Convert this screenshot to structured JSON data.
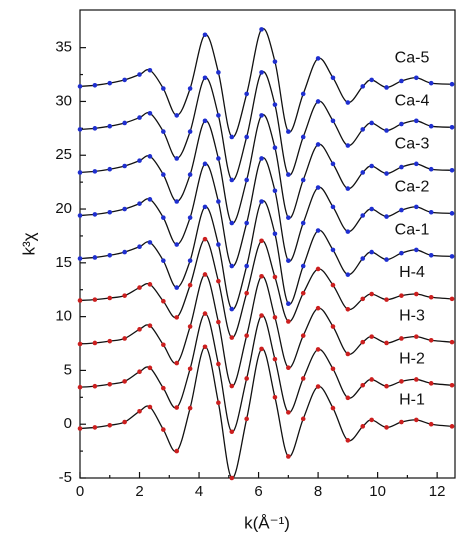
{
  "chart_data": {
    "type": "line",
    "x_label": "k(Å⁻¹)",
    "y_label": "k³χ",
    "x": [
      0,
      0.5,
      1,
      1.5,
      2,
      2.35,
      2.8,
      3.25,
      3.7,
      4.2,
      4.65,
      5.1,
      5.6,
      6.1,
      6.55,
      7.0,
      7.5,
      8.0,
      8.5,
      9.0,
      9.5,
      9.8,
      10.3,
      10.8,
      11.3,
      11.8,
      12.5
    ],
    "series": [
      {
        "name": "H-1",
        "color": "#cc1f1f",
        "values": [
          -0.4,
          -0.3,
          -0.1,
          0.2,
          1.2,
          1.6,
          -0.5,
          -2.5,
          1.5,
          7.2,
          2,
          -5,
          0.5,
          7.0,
          2.5,
          -3.0,
          0.5,
          3.5,
          1.5,
          -1.5,
          -0.2,
          0.4,
          -0.3,
          0.2,
          0.4,
          0,
          -0.2
        ]
      },
      {
        "name": "H-2",
        "color": "#cc1f1f",
        "values": [
          3.44,
          3.53,
          3.71,
          3.98,
          4.88,
          5.24,
          3.35,
          1.55,
          5.15,
          10.28,
          5.6,
          -0.7,
          4.25,
          10.1,
          6.05,
          1.1,
          4.25,
          6.95,
          5.15,
          2.45,
          3.62,
          4.16,
          3.53,
          3.98,
          4.16,
          3.8,
          3.62
        ]
      },
      {
        "name": "H-3",
        "color": "#cc1f1f",
        "values": [
          7.46,
          7.55,
          7.72,
          7.97,
          8.82,
          9.16,
          7.38,
          5.68,
          9.08,
          13.92,
          9.5,
          3.55,
          8.23,
          13.75,
          9.93,
          5.25,
          8.23,
          10.78,
          9.08,
          6.53,
          7.63,
          8.14,
          7.55,
          7.97,
          8.14,
          7.8,
          7.63
        ]
      },
      {
        "name": "H-4",
        "color": "#cc1f1f",
        "values": [
          11.5,
          11.58,
          11.73,
          11.95,
          12.7,
          13.0,
          11.43,
          9.93,
          12.93,
          17.2,
          13.3,
          8.05,
          12.18,
          17.05,
          13.68,
          9.55,
          12.18,
          14.43,
          12.93,
          10.68,
          11.65,
          12.1,
          11.58,
          11.95,
          12.1,
          11.8,
          11.65
        ]
      },
      {
        "name": "Ca-1",
        "color": "#1f2fd0",
        "values": [
          15.4,
          15.5,
          15.7,
          16.0,
          16.5,
          16.9,
          15.2,
          12.7,
          15.2,
          20.2,
          16.7,
          10.7,
          14.7,
          20.7,
          17.7,
          11.2,
          14.7,
          18.0,
          16.2,
          13.9,
          15.4,
          16.0,
          15.3,
          15.9,
          16.2,
          15.7,
          15.6
        ]
      },
      {
        "name": "Ca-2",
        "color": "#1f2fd0",
        "values": [
          19.4,
          19.5,
          19.7,
          20.0,
          20.5,
          20.9,
          19.2,
          16.7,
          19.2,
          24.2,
          20.7,
          14.7,
          18.7,
          24.7,
          21.7,
          15.2,
          18.7,
          22.0,
          20.2,
          17.9,
          19.4,
          20.0,
          19.3,
          19.9,
          20.2,
          19.7,
          19.6
        ]
      },
      {
        "name": "Ca-3",
        "color": "#1f2fd0",
        "values": [
          23.4,
          23.5,
          23.7,
          24.0,
          24.5,
          24.9,
          23.2,
          20.7,
          23.2,
          28.2,
          24.7,
          18.7,
          22.7,
          28.7,
          25.7,
          19.2,
          22.7,
          26.0,
          24.2,
          21.9,
          23.4,
          24.0,
          23.3,
          23.9,
          24.2,
          23.7,
          23.6
        ]
      },
      {
        "name": "Ca-4",
        "color": "#1f2fd0",
        "values": [
          27.4,
          27.5,
          27.7,
          28.0,
          28.5,
          28.9,
          27.2,
          24.7,
          27.2,
          32.2,
          28.7,
          22.7,
          26.7,
          32.7,
          29.7,
          23.2,
          26.7,
          30.0,
          28.2,
          25.9,
          27.4,
          28.0,
          27.3,
          27.9,
          28.2,
          27.7,
          27.6
        ]
      },
      {
        "name": "Ca-5",
        "color": "#1f2fd0",
        "values": [
          31.4,
          31.5,
          31.7,
          32.0,
          32.5,
          32.9,
          31.2,
          28.7,
          31.2,
          36.2,
          32.7,
          26.7,
          30.7,
          36.7,
          33.7,
          27.2,
          30.7,
          34.0,
          32.2,
          29.9,
          31.4,
          32.0,
          31.3,
          31.9,
          32.2,
          31.7,
          31.6
        ]
      }
    ],
    "xlim": [
      0,
      12.6
    ],
    "xticks": [
      0,
      2,
      4,
      6,
      8,
      10,
      12
    ],
    "ylim": [
      -5,
      38.5
    ],
    "yticks": [
      -5,
      0,
      5,
      10,
      15,
      20,
      25,
      30,
      35
    ]
  }
}
